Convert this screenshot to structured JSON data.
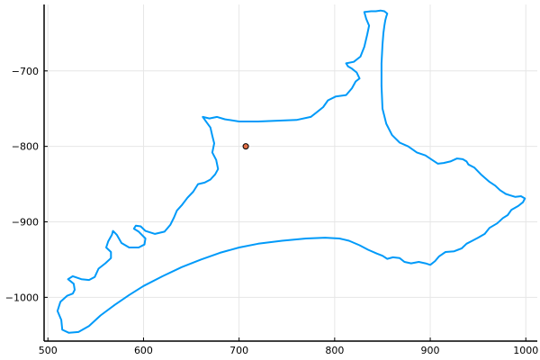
{
  "chart_data": {
    "type": "line",
    "xlim": [
      496,
      1012
    ],
    "ylim": [
      -1058,
      -612
    ],
    "x_ticks": [
      500,
      600,
      700,
      800,
      900,
      1000
    ],
    "x_tick_labels": [
      "500",
      "600",
      "700",
      "800",
      "900",
      "1000"
    ],
    "y_ticks": [
      -700,
      -800,
      -900,
      -1000
    ],
    "y_tick_labels": [
      "−700",
      "−800",
      "−900",
      "−1000"
    ],
    "grid": true,
    "legend": "none",
    "series": [
      {
        "kind": "line",
        "color": "#009af9",
        "points": [
          [
            831,
            -622
          ],
          [
            838,
            -621
          ],
          [
            843,
            -621
          ],
          [
            848,
            -620
          ],
          [
            852,
            -621
          ],
          [
            855,
            -624
          ],
          [
            854,
            -628
          ],
          [
            853,
            -633
          ],
          [
            852,
            -640
          ],
          [
            851,
            -650
          ],
          [
            850,
            -665
          ],
          [
            849,
            -690
          ],
          [
            849,
            -720
          ],
          [
            850,
            -750
          ],
          [
            854,
            -770
          ],
          [
            860,
            -785
          ],
          [
            868,
            -795
          ],
          [
            877,
            -800
          ],
          [
            886,
            -808
          ],
          [
            895,
            -812
          ],
          [
            902,
            -818
          ],
          [
            908,
            -823
          ],
          [
            914,
            -822
          ],
          [
            921,
            -820
          ],
          [
            928,
            -816
          ],
          [
            934,
            -817
          ],
          [
            938,
            -820
          ],
          [
            940,
            -824
          ],
          [
            946,
            -828
          ],
          [
            953,
            -837
          ],
          [
            962,
            -847
          ],
          [
            968,
            -852
          ],
          [
            973,
            -858
          ],
          [
            979,
            -863
          ],
          [
            984,
            -865
          ],
          [
            989,
            -867
          ],
          [
            995,
            -866
          ],
          [
            999,
            -869
          ],
          [
            997,
            -874
          ],
          [
            992,
            -879
          ],
          [
            985,
            -884
          ],
          [
            981,
            -891
          ],
          [
            976,
            -895
          ],
          [
            970,
            -902
          ],
          [
            962,
            -908
          ],
          [
            957,
            -916
          ],
          [
            950,
            -921
          ],
          [
            944,
            -925
          ],
          [
            938,
            -929
          ],
          [
            933,
            -935
          ],
          [
            925,
            -939
          ],
          [
            916,
            -940
          ],
          [
            909,
            -946
          ],
          [
            905,
            -952
          ],
          [
            900,
            -957
          ],
          [
            895,
            -955
          ],
          [
            888,
            -953
          ],
          [
            880,
            -955
          ],
          [
            873,
            -953
          ],
          [
            868,
            -948
          ],
          [
            861,
            -947
          ],
          [
            855,
            -949
          ],
          [
            850,
            -945
          ],
          [
            844,
            -942
          ],
          [
            835,
            -937
          ],
          [
            826,
            -931
          ],
          [
            815,
            -925
          ],
          [
            805,
            -922
          ],
          [
            790,
            -921
          ],
          [
            770,
            -922
          ],
          [
            745,
            -925
          ],
          [
            720,
            -929
          ],
          [
            700,
            -934
          ],
          [
            680,
            -941
          ],
          [
            660,
            -950
          ],
          [
            640,
            -960
          ],
          [
            620,
            -972
          ],
          [
            600,
            -985
          ],
          [
            585,
            -997
          ],
          [
            570,
            -1010
          ],
          [
            555,
            -1024
          ],
          [
            543,
            -1038
          ],
          [
            532,
            -1046
          ],
          [
            522,
            -1047
          ],
          [
            515,
            -1043
          ],
          [
            514,
            -1030
          ],
          [
            510,
            -1018
          ],
          [
            513,
            -1006
          ],
          [
            520,
            -998
          ],
          [
            526,
            -995
          ],
          [
            528,
            -990
          ],
          [
            527,
            -982
          ],
          [
            521,
            -976
          ],
          [
            526,
            -972
          ],
          [
            535,
            -976
          ],
          [
            543,
            -977
          ],
          [
            549,
            -973
          ],
          [
            553,
            -962
          ],
          [
            560,
            -955
          ],
          [
            566,
            -948
          ],
          [
            566,
            -940
          ],
          [
            561,
            -934
          ],
          [
            563,
            -926
          ],
          [
            567,
            -917
          ],
          [
            568,
            -912
          ],
          [
            572,
            -917
          ],
          [
            577,
            -928
          ],
          [
            585,
            -934
          ],
          [
            595,
            -934
          ],
          [
            601,
            -930
          ],
          [
            602,
            -922
          ],
          [
            595,
            -913
          ],
          [
            590,
            -909
          ],
          [
            592,
            -905
          ],
          [
            597,
            -906
          ],
          [
            602,
            -912
          ],
          [
            612,
            -916
          ],
          [
            622,
            -913
          ],
          [
            628,
            -904
          ],
          [
            632,
            -894
          ],
          [
            635,
            -885
          ],
          [
            640,
            -878
          ],
          [
            646,
            -868
          ],
          [
            652,
            -860
          ],
          [
            657,
            -850
          ],
          [
            664,
            -848
          ],
          [
            670,
            -844
          ],
          [
            675,
            -837
          ],
          [
            678,
            -830
          ],
          [
            676,
            -818
          ],
          [
            672,
            -808
          ],
          [
            674,
            -796
          ],
          [
            672,
            -786
          ],
          [
            670,
            -775
          ],
          [
            666,
            -768
          ],
          [
            662,
            -761
          ],
          [
            669,
            -763
          ],
          [
            677,
            -761
          ],
          [
            685,
            -764
          ],
          [
            700,
            -767
          ],
          [
            720,
            -767
          ],
          [
            740,
            -766
          ],
          [
            760,
            -765
          ],
          [
            775,
            -761
          ],
          [
            780,
            -756
          ],
          [
            788,
            -748
          ],
          [
            793,
            -739
          ],
          [
            801,
            -734
          ],
          [
            812,
            -732
          ],
          [
            818,
            -723
          ],
          [
            822,
            -714
          ],
          [
            826,
            -710
          ],
          [
            823,
            -702
          ],
          [
            818,
            -697
          ],
          [
            814,
            -694
          ],
          [
            812,
            -690
          ],
          [
            820,
            -688
          ],
          [
            827,
            -681
          ],
          [
            831,
            -668
          ],
          [
            834,
            -652
          ],
          [
            836,
            -640
          ],
          [
            833,
            -631
          ],
          [
            831,
            -622
          ]
        ]
      },
      {
        "kind": "point",
        "color": "#e26f46",
        "x": 707,
        "y": -800
      }
    ]
  }
}
